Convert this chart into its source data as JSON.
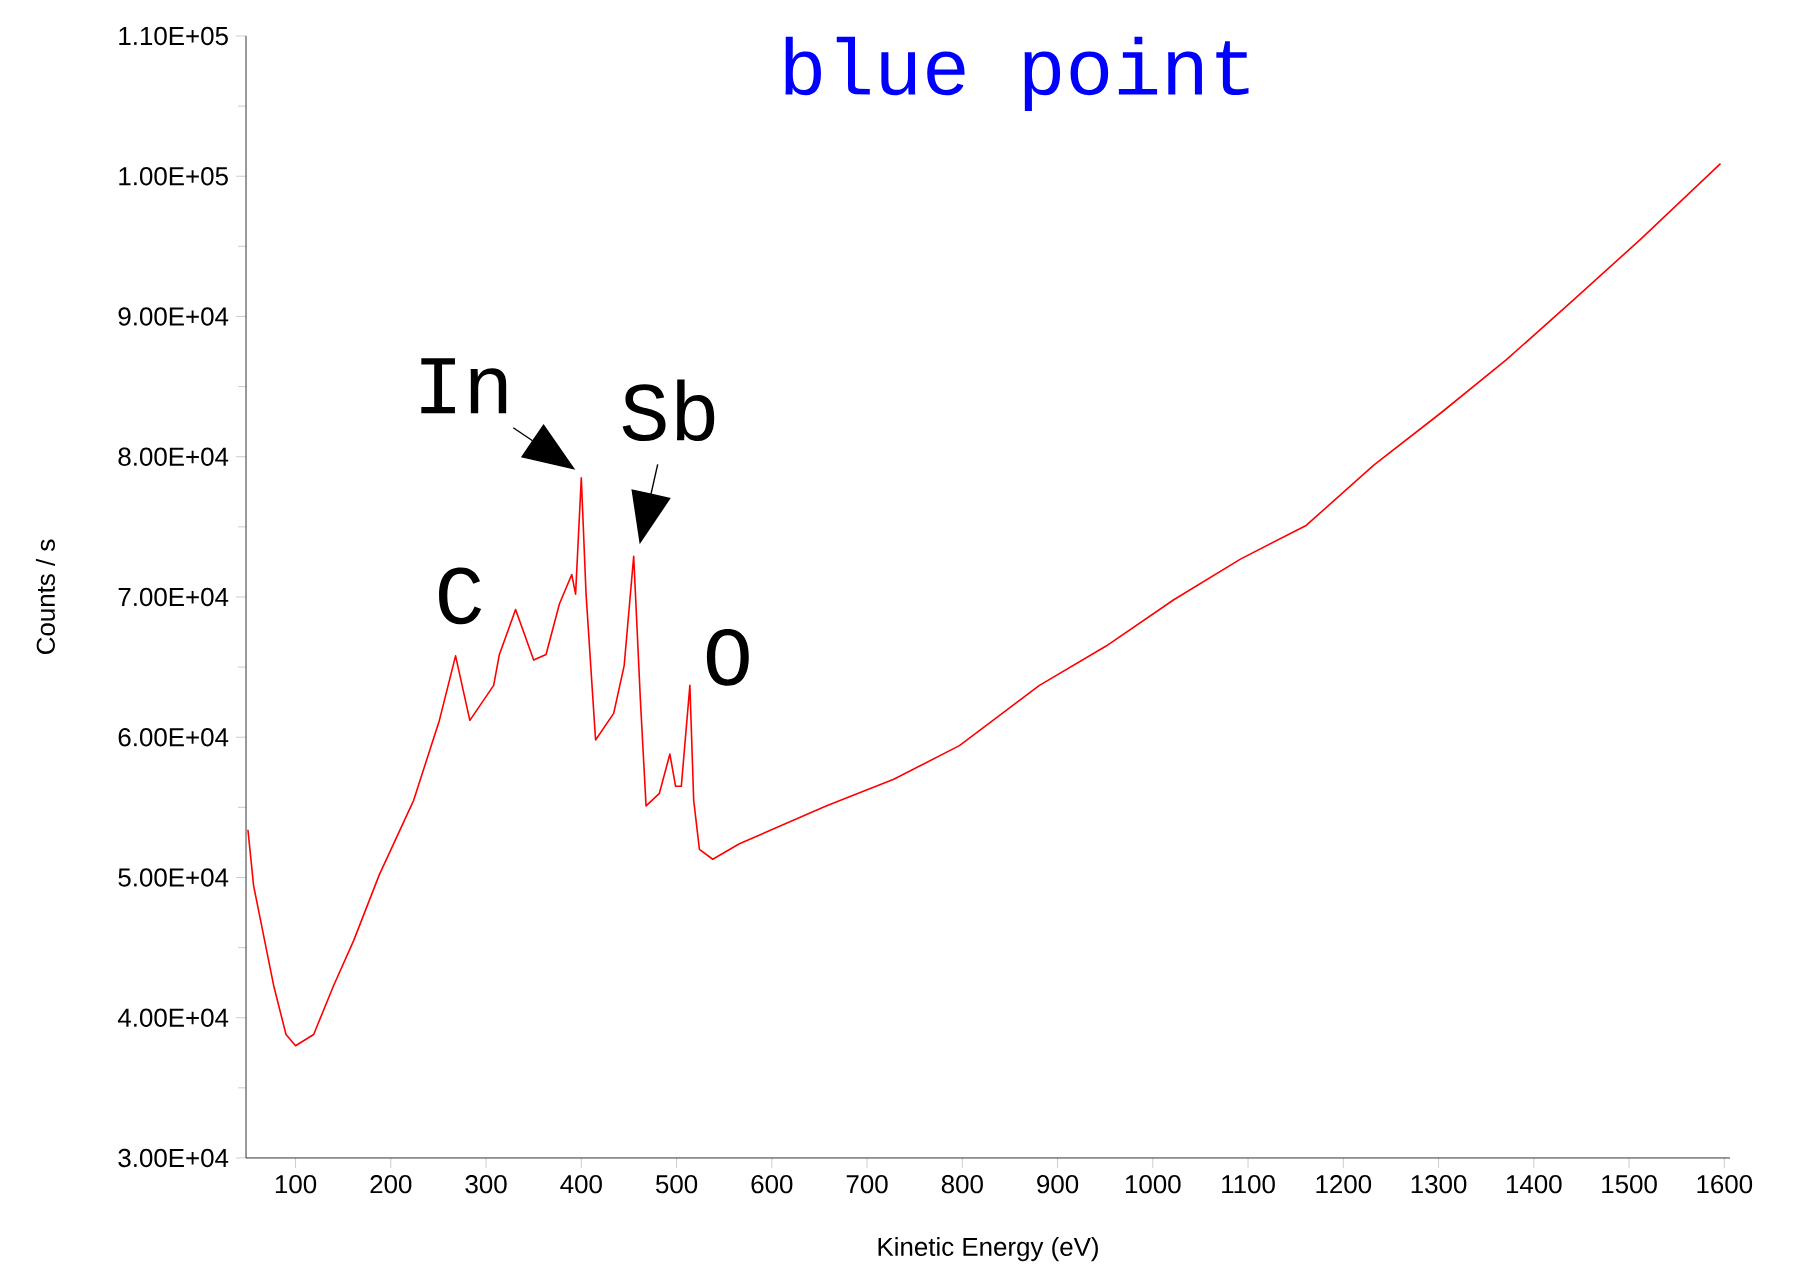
{
  "chart_data": {
    "type": "line",
    "title": "blue point",
    "xlabel": "Kinetic Energy (eV)",
    "ylabel": "Counts / s",
    "x": [
      50,
      56,
      77,
      90,
      100,
      119,
      140,
      161,
      188,
      224,
      251,
      268,
      283,
      308,
      314,
      331,
      350,
      363,
      377,
      390,
      394,
      400,
      405,
      415,
      434,
      445,
      455,
      462,
      468,
      482,
      493,
      499,
      505,
      514,
      518,
      524,
      538,
      566,
      657,
      728,
      797,
      881,
      951,
      1022,
      1092,
      1161,
      1232,
      1302,
      1371,
      1442,
      1512,
      1596
    ],
    "series": [
      {
        "color": "#ff0000",
        "values": [
          53400,
          49400,
          42300,
          38800,
          38000,
          38800,
          42300,
          45500,
          50200,
          55500,
          61200,
          65800,
          61200,
          63700,
          65900,
          69100,
          65500,
          65900,
          69500,
          71600,
          70200,
          78500,
          70200,
          59800,
          61700,
          65100,
          72900,
          62700,
          55100,
          56000,
          58800,
          56500,
          56500,
          63700,
          55500,
          52000,
          51300,
          52400,
          55100,
          57000,
          59400,
          63700,
          66500,
          69800,
          72700,
          75100,
          79400,
          83100,
          86900,
          91200,
          95500,
          100900
        ]
      }
    ],
    "xlim": [
      48,
      1606
    ],
    "ylim": [
      30000,
      110000
    ],
    "xticks": [
      100,
      200,
      300,
      400,
      500,
      600,
      700,
      800,
      900,
      1000,
      1100,
      1200,
      1300,
      1400,
      1500,
      1600
    ],
    "yticks": [
      {
        "value": 30000,
        "label": "3.00E+04"
      },
      {
        "value": 40000,
        "label": "4.00E+04"
      },
      {
        "value": 50000,
        "label": "5.00E+04"
      },
      {
        "value": 60000,
        "label": "6.00E+04"
      },
      {
        "value": 70000,
        "label": "7.00E+04"
      },
      {
        "value": 80000,
        "label": "8.00E+04"
      },
      {
        "value": 90000,
        "label": "9.00E+04"
      },
      {
        "value": 100000,
        "label": "1.00E+05"
      },
      {
        "value": 110000,
        "label": "1.10E+05"
      }
    ],
    "annotations": [
      {
        "text": "C",
        "x": 268,
        "y": 65800
      },
      {
        "text": "In",
        "x": 400,
        "y": 78500
      },
      {
        "text": "Sb",
        "x": 455,
        "y": 72900
      },
      {
        "text": "O",
        "x": 514,
        "y": 63700
      }
    ],
    "grid": false,
    "marker": "none",
    "line_style": "solid"
  }
}
